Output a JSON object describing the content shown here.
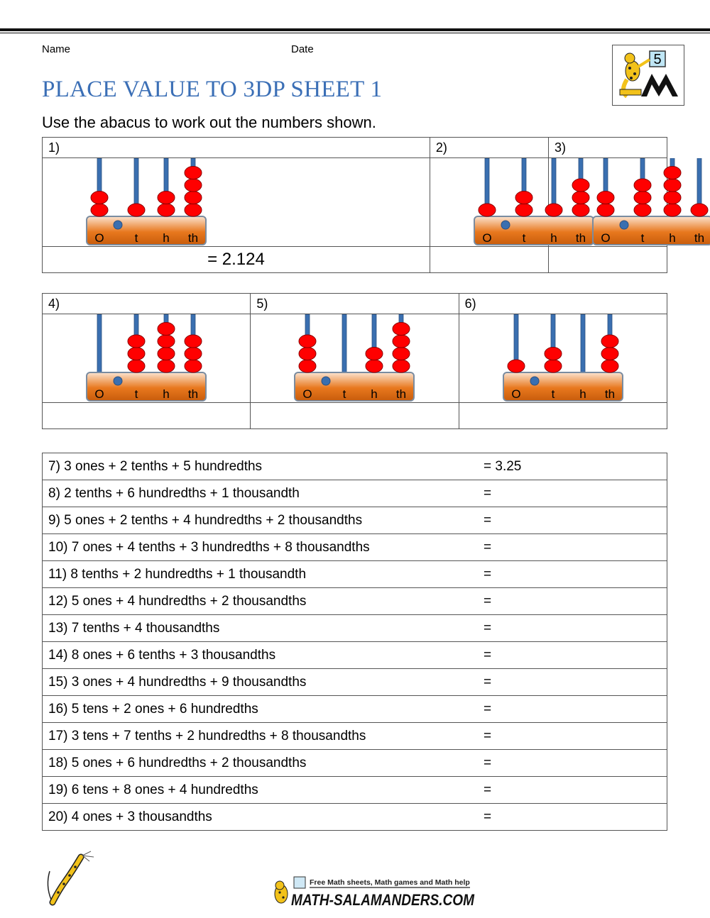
{
  "header": {
    "name_label": "Name",
    "date_label": "Date",
    "grade_badge": "5"
  },
  "title": "PLACE VALUE TO 3DP SHEET 1",
  "instruction": "Use the abacus to work out the numbers shown.",
  "abacus_labels": [
    "O",
    "t",
    "h",
    "th"
  ],
  "abacus_rows": [
    [
      {
        "label": "1)",
        "beads": [
          2,
          1,
          2,
          4
        ],
        "answer": "= 2.124"
      },
      {
        "label": "2)",
        "beads": [
          1,
          2,
          1,
          3
        ],
        "answer": ""
      },
      {
        "label": "3)",
        "beads": [
          2,
          3,
          4,
          1
        ],
        "answer": ""
      }
    ],
    [
      {
        "label": "4)",
        "beads": [
          0,
          3,
          4,
          3
        ],
        "answer": ""
      },
      {
        "label": "5)",
        "beads": [
          3,
          0,
          2,
          4
        ],
        "answer": ""
      },
      {
        "label": "6)",
        "beads": [
          1,
          2,
          0,
          3
        ],
        "answer": ""
      }
    ]
  ],
  "questions": [
    {
      "text": "7) 3 ones + 2 tenths + 5 hundredths",
      "eq": "= 3.25"
    },
    {
      "text": "8) 2 tenths + 6 hundredths + 1 thousandth",
      "eq": "="
    },
    {
      "text": "9) 5 ones + 2 tenths + 4 hundredths + 2 thousandths",
      "eq": "="
    },
    {
      "text": "10) 7 ones + 4 tenths + 3 hundredths + 8 thousandths",
      "eq": "="
    },
    {
      "text": "11) 8 tenths + 2 hundredths + 1 thousandth",
      "eq": "="
    },
    {
      "text": "12) 5 ones + 4 hundredths + 2 thousandths",
      "eq": "="
    },
    {
      "text": "13) 7 tenths + 4 thousandths",
      "eq": "="
    },
    {
      "text": "14) 8 ones + 6 tenths + 3 thousandths",
      "eq": "="
    },
    {
      "text": "15) 3 ones + 4 hundredths + 9 thousandths",
      "eq": "="
    },
    {
      "text": "16) 5 tens + 2 ones + 6 hundredths",
      "eq": "="
    },
    {
      "text": "17) 3 tens + 7 tenths + 2 hundredths + 8 thousandths",
      "eq": "="
    },
    {
      "text": "18) 5 ones + 6 hundredths + 2 thousandths",
      "eq": "="
    },
    {
      "text": "19) 6 tens + 8 ones + 4 hundredths",
      "eq": "="
    },
    {
      "text": "20) 4 ones + 3 thousandths",
      "eq": "="
    }
  ],
  "footer": {
    "tagline": "Free Math sheets, Math games and Math help",
    "site": "MATH-SALAMANDERS.COM"
  },
  "colors": {
    "title": "#3b6fb6",
    "bead": "#ff0000",
    "rod": "#3a6fb0",
    "frame": "#e8781e",
    "dot": "#3a6fb0"
  }
}
